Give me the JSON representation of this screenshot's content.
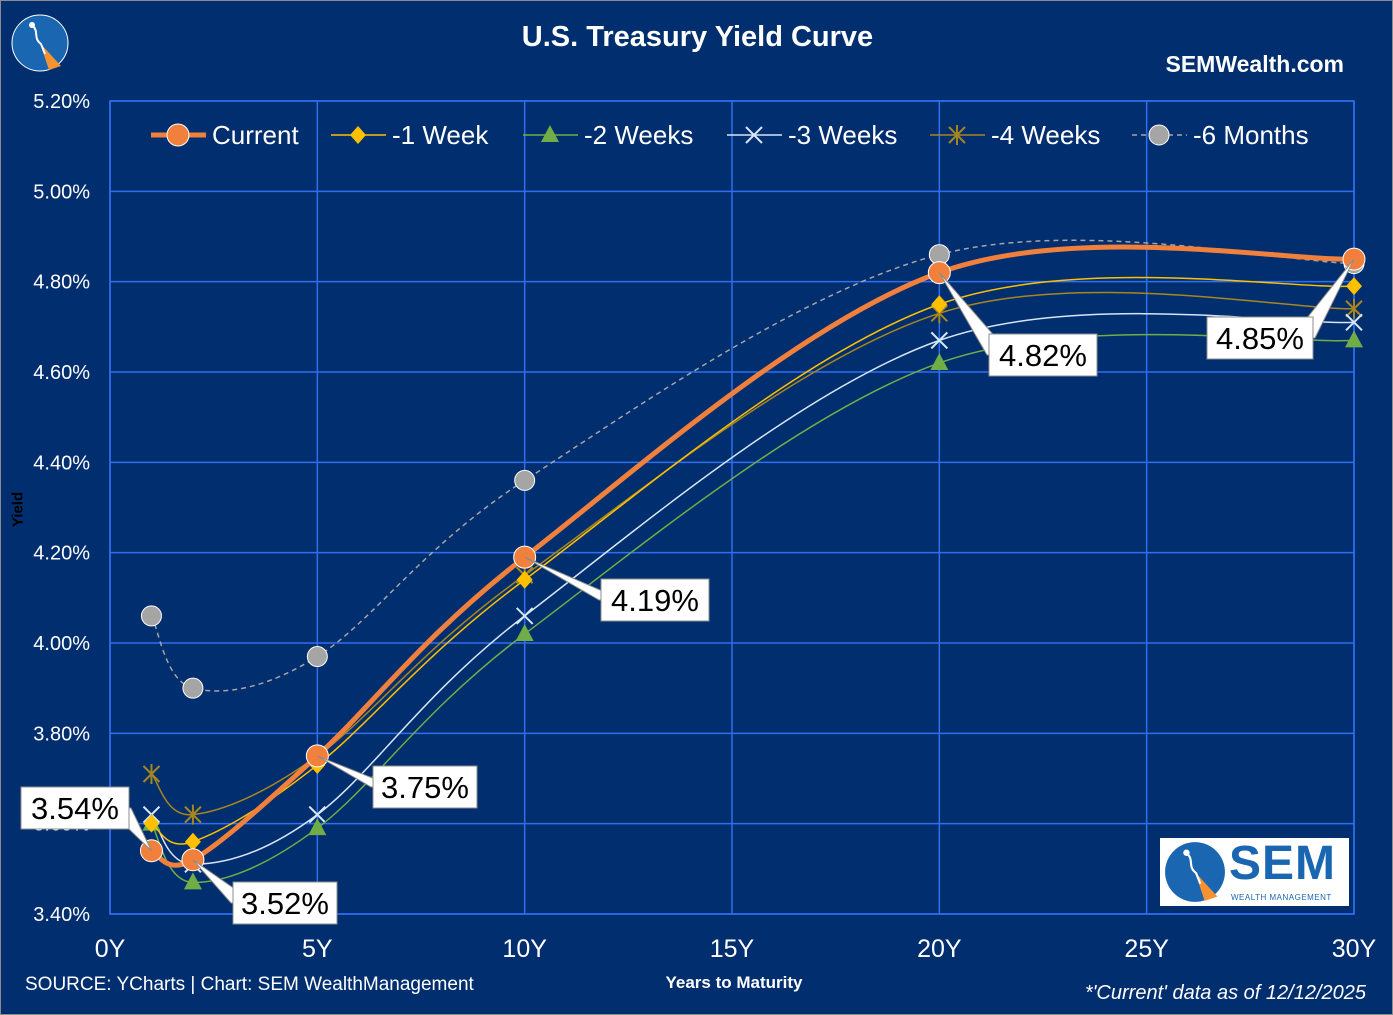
{
  "header": {
    "title": "U.S. Treasury Yield Curve",
    "site": "SEMWealth.com"
  },
  "footer": {
    "source": "SOURCE: YCharts | Chart: SEM WealthManagement",
    "as_of": "*'Current' data as of 12/12/2025"
  },
  "logo": {
    "text": "SEM",
    "subtext": "WEALTH MANAGEMENT",
    "accent_color": "#f79232",
    "brand_color": "#1a66b0"
  },
  "chart_data": {
    "type": "line",
    "title": "U.S. Treasury Yield Curve",
    "xlabel": "Years to Maturity",
    "ylabel": "Yield",
    "xlim": [
      0,
      30
    ],
    "ylim": [
      3.4,
      5.2
    ],
    "x_ticks": [
      0,
      5,
      10,
      15,
      20,
      25,
      30
    ],
    "x_tick_labels": [
      "0Y",
      "5Y",
      "10Y",
      "15Y",
      "20Y",
      "25Y",
      "30Y"
    ],
    "y_ticks": [
      3.4,
      3.6,
      3.8,
      4.0,
      4.2,
      4.4,
      4.6,
      4.8,
      5.0,
      5.2
    ],
    "y_tick_labels": [
      "3.40%",
      "3.60%",
      "3.80%",
      "4.00%",
      "4.20%",
      "4.40%",
      "4.60%",
      "4.80%",
      "5.00%",
      "5.20%"
    ],
    "grid": true,
    "legend_position": "top",
    "x": [
      1,
      2,
      5,
      10,
      20,
      30
    ],
    "series": [
      {
        "name": "Current",
        "values": [
          3.54,
          3.52,
          3.75,
          4.19,
          4.82,
          4.85
        ],
        "color": "#f0803c",
        "marker": "circle"
      },
      {
        "name": "-1 Week",
        "values": [
          3.6,
          3.56,
          3.73,
          4.14,
          4.75,
          4.79
        ],
        "color": "#ffc000",
        "marker": "diamond"
      },
      {
        "name": "-2 Weeks",
        "values": [
          3.6,
          3.47,
          3.59,
          4.02,
          4.62,
          4.67
        ],
        "color": "#70ad47",
        "marker": "triangle"
      },
      {
        "name": "-3 Weeks",
        "values": [
          3.62,
          3.51,
          3.62,
          4.06,
          4.67,
          4.71
        ],
        "color": "#d6e6f5",
        "marker": "x"
      },
      {
        "name": "-4 Weeks",
        "values": [
          3.71,
          3.62,
          3.75,
          4.15,
          4.73,
          4.74
        ],
        "color": "#a8861e",
        "marker": "star"
      },
      {
        "name": "-6 Months",
        "values": [
          4.06,
          3.9,
          3.97,
          4.36,
          4.86,
          4.84
        ],
        "color": "#a5a5a5",
        "marker": "circle-dash"
      }
    ],
    "annotations": [
      "3.54%",
      "3.52%",
      "3.75%",
      "4.19%",
      "4.82%",
      "4.85%"
    ]
  }
}
